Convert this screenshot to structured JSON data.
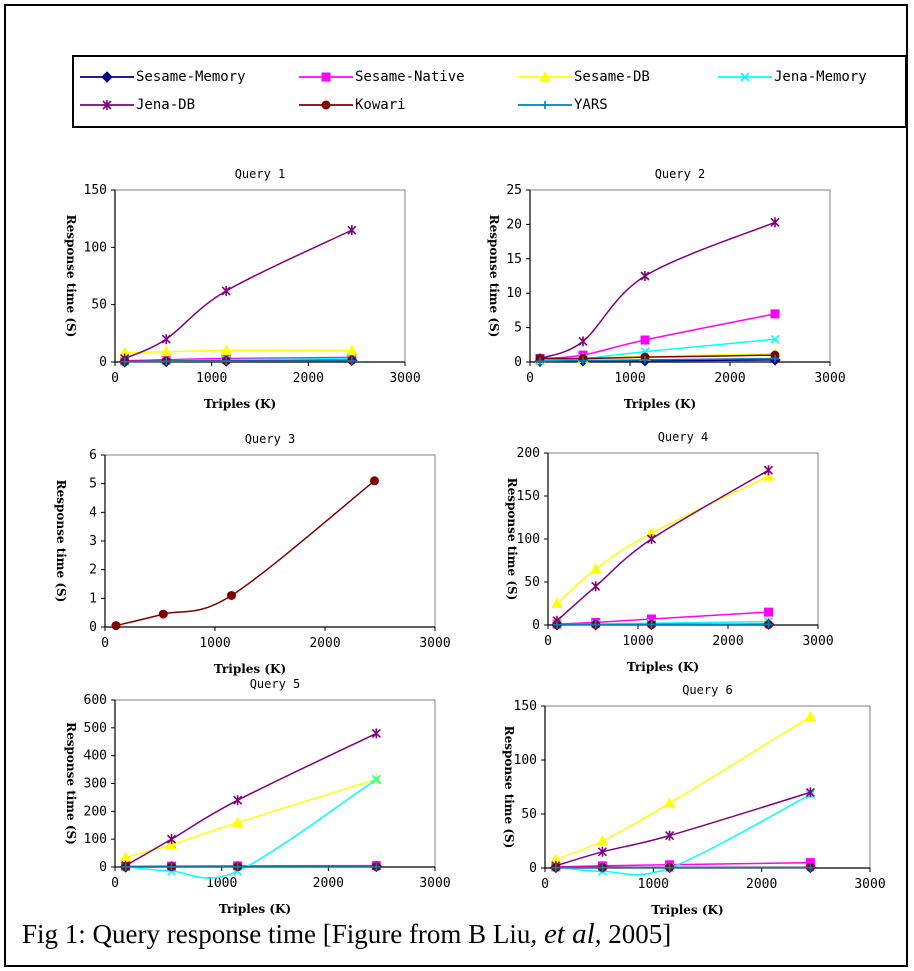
{
  "caption": {
    "before": "Fig 1: Query response time [Figure from B Liu, ",
    "em": "et al",
    "after": ", 2005]"
  },
  "legend": [
    {
      "name": "Sesame-Memory",
      "color": "#000080",
      "marker": "diamond"
    },
    {
      "name": "Sesame-Native",
      "color": "#ff00ff",
      "marker": "square"
    },
    {
      "name": "Sesame-DB",
      "color": "#ffff00",
      "marker": "triangle"
    },
    {
      "name": "Jena-Memory",
      "color": "#00ffff",
      "marker": "x"
    },
    {
      "name": "Jena-DB",
      "color": "#800080",
      "marker": "star"
    },
    {
      "name": "Kowari",
      "color": "#800000",
      "marker": "circle"
    },
    {
      "name": "YARS",
      "color": "#0080c0",
      "marker": "plus"
    }
  ],
  "chart_data": [
    {
      "type": "line",
      "title": "Query 1",
      "xlabel": "Triples (K)",
      "ylabel": "Response time (S)",
      "xlim": [
        0,
        3000
      ],
      "ylim": [
        0,
        150
      ],
      "xticks": [
        "0",
        "1000",
        "2000",
        "3000"
      ],
      "yticks": [
        "0",
        "50",
        "100",
        "150"
      ],
      "x": [
        100,
        530,
        1150,
        2450
      ],
      "series": [
        {
          "name": "Sesame-Memory",
          "values": [
            0.2,
            0.5,
            0.8,
            1.5
          ]
        },
        {
          "name": "Sesame-Native",
          "values": [
            1,
            2,
            3,
            4
          ]
        },
        {
          "name": "Sesame-DB",
          "values": [
            8,
            9,
            10,
            10
          ]
        },
        {
          "name": "Jena-Memory",
          "values": [
            0.5,
            1,
            2,
            3
          ]
        },
        {
          "name": "Jena-DB",
          "values": [
            3,
            20,
            62,
            115
          ]
        },
        {
          "name": "Kowari",
          "values": [
            0.5,
            0.8,
            1,
            1.5
          ]
        },
        {
          "name": "YARS",
          "values": [
            0.3,
            0.5,
            0.8,
            1
          ]
        }
      ]
    },
    {
      "type": "line",
      "title": "Query 2",
      "xlabel": "Triples (K)",
      "ylabel": "Response time (S)",
      "xlim": [
        0,
        3000
      ],
      "ylim": [
        0,
        25
      ],
      "xticks": [
        "0",
        "1000",
        "2000",
        "3000"
      ],
      "yticks": [
        "0",
        "5",
        "10",
        "15",
        "20",
        "25"
      ],
      "x": [
        100,
        530,
        1150,
        2450
      ],
      "series": [
        {
          "name": "Sesame-Memory",
          "values": [
            0.1,
            0.2,
            0.2,
            0.3
          ]
        },
        {
          "name": "Sesame-Native",
          "values": [
            0.5,
            1,
            3.2,
            7
          ]
        },
        {
          "name": "Sesame-DB",
          "values": [
            0.3,
            0.5,
            0.8,
            1.2
          ]
        },
        {
          "name": "Jena-Memory",
          "values": [
            0.2,
            0.5,
            1.5,
            3.3
          ]
        },
        {
          "name": "Jena-DB",
          "values": [
            0.5,
            3,
            12.5,
            20.3
          ]
        },
        {
          "name": "Kowari",
          "values": [
            0.5,
            0.5,
            0.7,
            1
          ]
        },
        {
          "name": "YARS",
          "values": [
            0.1,
            0.2,
            0.3,
            0.5
          ]
        }
      ]
    },
    {
      "type": "line",
      "title": "Query 3",
      "xlabel": "Triples (K)",
      "ylabel": "Response time (S)",
      "xlim": [
        0,
        3000
      ],
      "ylim": [
        0,
        6
      ],
      "xticks": [
        "0",
        "1000",
        "2000",
        "3000"
      ],
      "yticks": [
        "0",
        "1",
        "2",
        "3",
        "4",
        "5",
        "6"
      ],
      "x": [
        100,
        530,
        1150,
        2450
      ],
      "series": [
        {
          "name": "Kowari",
          "values": [
            0.05,
            0.45,
            1.1,
            5.1
          ]
        }
      ]
    },
    {
      "type": "line",
      "title": "Query 4",
      "xlabel": "Triples (K)",
      "ylabel": "Response time (S)",
      "xlim": [
        0,
        3000
      ],
      "ylim": [
        0,
        200
      ],
      "xticks": [
        "0",
        "1000",
        "2000",
        "3000"
      ],
      "yticks": [
        "0",
        "50",
        "100",
        "150",
        "200"
      ],
      "x": [
        100,
        530,
        1150,
        2450
      ],
      "series": [
        {
          "name": "Sesame-Memory",
          "values": [
            0.2,
            0.4,
            0.6,
            1
          ]
        },
        {
          "name": "Sesame-Native",
          "values": [
            1,
            3,
            7,
            15
          ]
        },
        {
          "name": "Sesame-DB",
          "values": [
            25,
            65,
            107,
            173
          ]
        },
        {
          "name": "Jena-Memory",
          "values": [
            0.5,
            1,
            2,
            4
          ]
        },
        {
          "name": "Jena-DB",
          "values": [
            5,
            45,
            100,
            180
          ]
        },
        {
          "name": "Kowari",
          "values": [
            0.5,
            0.5,
            0.5,
            0.5
          ]
        },
        {
          "name": "YARS",
          "values": [
            0.3,
            0.4,
            0.6,
            0.8
          ]
        }
      ]
    },
    {
      "type": "line",
      "title": "Query 5",
      "xlabel": "Triples (K)",
      "ylabel": "Response time (S)",
      "xlim": [
        0,
        3000
      ],
      "ylim": [
        0,
        600
      ],
      "xticks": [
        "0",
        "1000",
        "2000",
        "3000"
      ],
      "yticks": [
        "0",
        "100",
        "200",
        "300",
        "400",
        "500",
        "600"
      ],
      "x": [
        100,
        530,
        1150,
        2450
      ],
      "series": [
        {
          "name": "Sesame-Memory",
          "values": [
            0.5,
            1,
            1,
            2
          ]
        },
        {
          "name": "Sesame-Native",
          "values": [
            2,
            3,
            4,
            5
          ]
        },
        {
          "name": "Sesame-DB",
          "values": [
            35,
            80,
            160,
            315
          ]
        },
        {
          "name": "Jena-Memory",
          "values": [
            1,
            -15,
            -15,
            315
          ]
        },
        {
          "name": "Jena-DB",
          "values": [
            5,
            100,
            240,
            480
          ]
        },
        {
          "name": "Kowari",
          "values": [
            1,
            1,
            1,
            1
          ]
        },
        {
          "name": "YARS",
          "values": [
            0.5,
            0.5,
            0.5,
            0.5
          ]
        }
      ]
    },
    {
      "type": "line",
      "title": "Query 6",
      "xlabel": "Triples (K)",
      "ylabel": "Response time (S)",
      "xlim": [
        0,
        3000
      ],
      "ylim": [
        0,
        150
      ],
      "xticks": [
        "0",
        "1000",
        "2000",
        "3000"
      ],
      "yticks": [
        "0",
        "50",
        "100",
        "150"
      ],
      "x": [
        100,
        530,
        1150,
        2450
      ],
      "series": [
        {
          "name": "Sesame-Memory",
          "values": [
            0.5,
            0.5,
            0.5,
            0.5
          ]
        },
        {
          "name": "Sesame-Native",
          "values": [
            1,
            2,
            3,
            5
          ]
        },
        {
          "name": "Sesame-DB",
          "values": [
            8,
            25,
            60,
            140
          ]
        },
        {
          "name": "Jena-Memory",
          "values": [
            1,
            -3,
            0,
            68
          ]
        },
        {
          "name": "Jena-DB",
          "values": [
            2,
            15,
            30,
            70
          ]
        },
        {
          "name": "Kowari",
          "values": [
            0.5,
            0.5,
            0.5,
            0.5
          ]
        },
        {
          "name": "YARS",
          "values": [
            0.3,
            0.3,
            0.3,
            0.3
          ]
        }
      ]
    }
  ]
}
